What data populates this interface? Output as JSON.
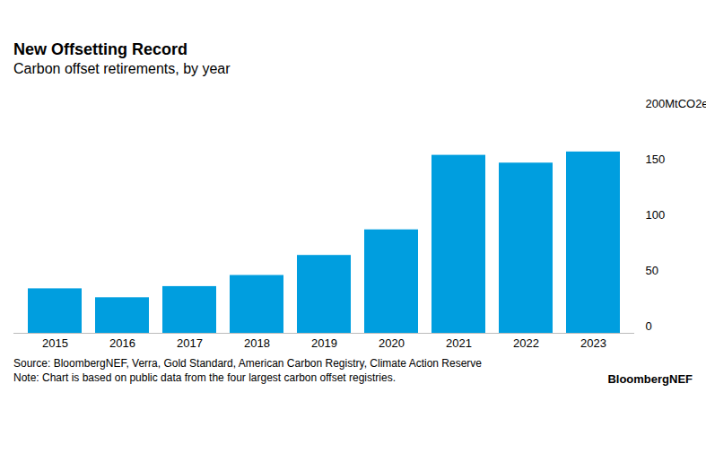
{
  "chart_data": {
    "type": "bar",
    "title": "New Offsetting Record",
    "subtitle": "Carbon offset retirements, by year",
    "categories": [
      "2015",
      "2016",
      "2017",
      "2018",
      "2019",
      "2020",
      "2021",
      "2022",
      "2023"
    ],
    "values": [
      40,
      32,
      42,
      52,
      70,
      93,
      160,
      153,
      163
    ],
    "color": "#009edf",
    "ylim": [
      0,
      200
    ],
    "yticks": [
      0,
      50,
      100,
      150,
      {
        "value": 200,
        "label": "200MtCO2e"
      }
    ],
    "grid": false,
    "source": "Source: BloombergNEF, Verra, Gold Standard, American Carbon Registry, Climate Action Reserve",
    "note": "Note: Chart is based on public data from the four largest carbon offset registries.",
    "brand": "BloombergNEF"
  }
}
